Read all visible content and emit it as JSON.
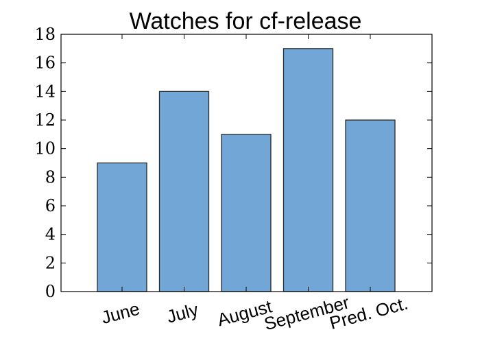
{
  "chart_data": {
    "type": "bar",
    "title": "Watches for cf-release",
    "xlabel": "",
    "ylabel": "",
    "categories": [
      "June",
      "July",
      "August",
      "September",
      "Pred. Oct."
    ],
    "values": [
      9,
      14,
      11,
      17,
      12
    ],
    "ylim": [
      0,
      18
    ],
    "yticks": [
      0,
      2,
      4,
      6,
      8,
      10,
      12,
      14,
      16,
      18
    ],
    "grid": false,
    "legend": "none",
    "bar_color": "#71a6d6",
    "edge_color": "#2a2a2a"
  }
}
